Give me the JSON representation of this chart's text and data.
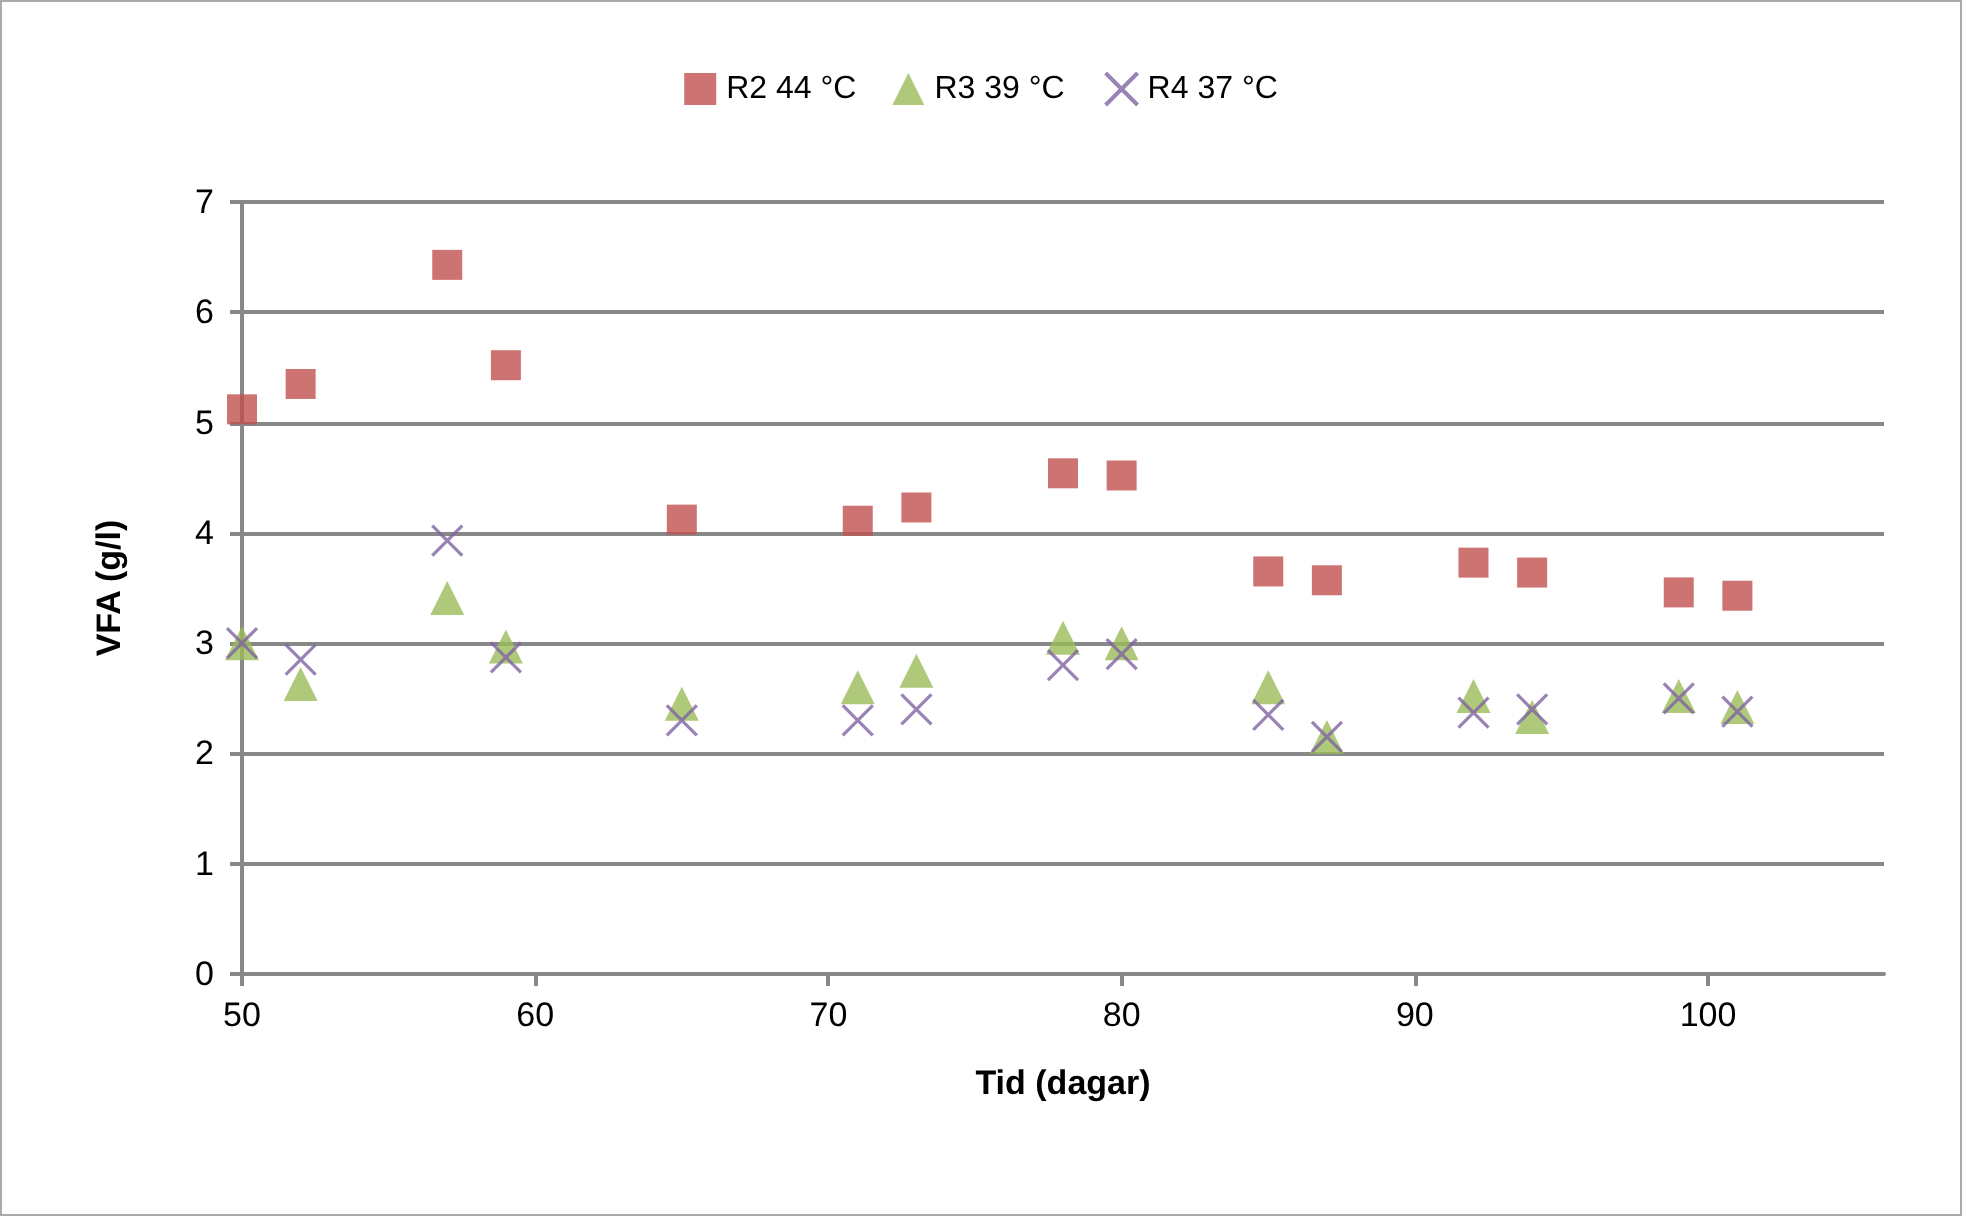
{
  "chart_data": {
    "type": "scatter",
    "xlabel": "Tid (dagar)",
    "ylabel": "VFA (g/l)",
    "x": [
      50,
      52,
      57,
      59,
      65,
      71,
      73,
      78,
      80,
      85,
      87,
      92,
      94,
      99,
      101
    ],
    "xlim": [
      50,
      106
    ],
    "xticks": [
      50,
      60,
      70,
      80,
      90,
      100
    ],
    "ylim": [
      0,
      7
    ],
    "yticks": [
      0,
      1,
      2,
      3,
      4,
      5,
      6,
      7
    ],
    "grid": "y",
    "legend": "top",
    "series": [
      {
        "name": "R2 44 °C",
        "color": "#c0504d",
        "marker": "square",
        "values": [
          5.12,
          5.35,
          6.43,
          5.52,
          4.12,
          4.11,
          4.23,
          4.54,
          4.52,
          3.65,
          3.57,
          3.73,
          3.64,
          3.46,
          3.43
        ]
      },
      {
        "name": "R3 39 °C",
        "color": "#9bbb59",
        "marker": "triangle",
        "values": [
          3.0,
          2.63,
          3.41,
          2.97,
          2.45,
          2.6,
          2.75,
          3.05,
          3.0,
          2.6,
          2.15,
          2.52,
          2.33,
          2.52,
          2.42
        ]
      },
      {
        "name": "R4 37 °C",
        "color": "#8064a2",
        "marker": "cross",
        "values": [
          3.0,
          2.85,
          3.93,
          2.87,
          2.3,
          2.3,
          2.4,
          2.8,
          2.9,
          2.35,
          2.15,
          2.37,
          2.4,
          2.5,
          2.38
        ]
      }
    ]
  }
}
